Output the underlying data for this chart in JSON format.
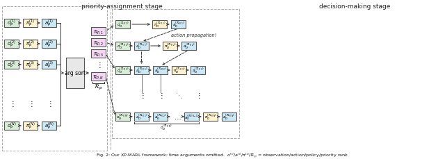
{
  "fig_width": 6.4,
  "fig_height": 2.3,
  "dpi": 100,
  "bg_color": "#ffffff",
  "title_left": "priority-assignment stage",
  "title_right": "decision-making stage",
  "box_yellow": "#fdf3d0",
  "box_blue": "#cce8f4",
  "box_green": "#d8edd8",
  "box_pink": "#f2d8f2",
  "box_gray": "#e8e8e8",
  "border_color": "#666666",
  "arrow_color": "#333333",
  "caption": "Fig. 2: Our XP-MARL framework; time arguments omitted."
}
